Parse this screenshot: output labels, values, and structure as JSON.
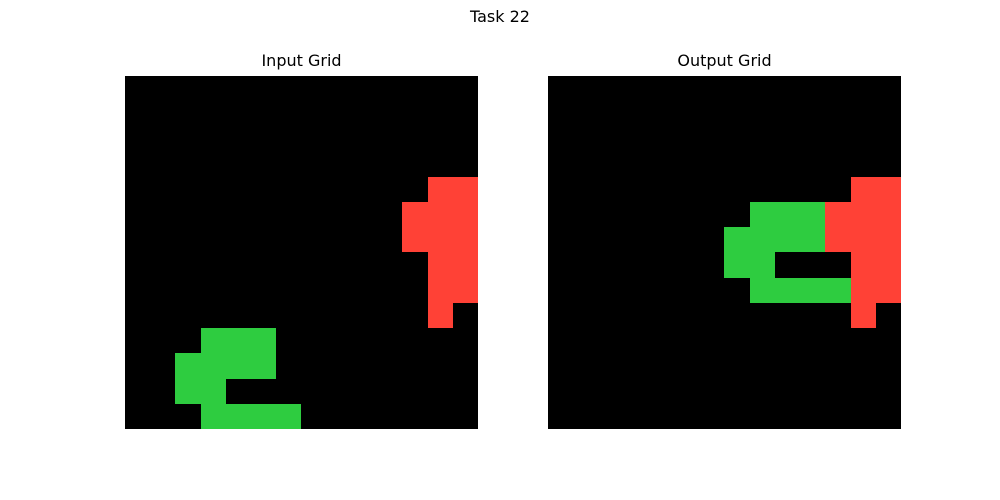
{
  "title": "Task 22",
  "palette": {
    "0": "#000000",
    "2": "#ff4136",
    "3": "#2ecc40"
  },
  "panels": [
    {
      "title": "Input Grid",
      "grid": [
        [
          0,
          0,
          0,
          0,
          0,
          0,
          0,
          0,
          0,
          0,
          0,
          0,
          0,
          0
        ],
        [
          0,
          0,
          0,
          0,
          0,
          0,
          0,
          0,
          0,
          0,
          0,
          0,
          0,
          0
        ],
        [
          0,
          0,
          0,
          0,
          0,
          0,
          0,
          0,
          0,
          0,
          0,
          0,
          0,
          0
        ],
        [
          0,
          0,
          0,
          0,
          0,
          0,
          0,
          0,
          0,
          0,
          0,
          0,
          0,
          0
        ],
        [
          0,
          0,
          0,
          0,
          0,
          0,
          0,
          0,
          0,
          0,
          0,
          0,
          2,
          2
        ],
        [
          0,
          0,
          0,
          0,
          0,
          0,
          0,
          0,
          0,
          0,
          0,
          2,
          2,
          2
        ],
        [
          0,
          0,
          0,
          0,
          0,
          0,
          0,
          0,
          0,
          0,
          0,
          2,
          2,
          2
        ],
        [
          0,
          0,
          0,
          0,
          0,
          0,
          0,
          0,
          0,
          0,
          0,
          0,
          2,
          2
        ],
        [
          0,
          0,
          0,
          0,
          0,
          0,
          0,
          0,
          0,
          0,
          0,
          0,
          2,
          2
        ],
        [
          0,
          0,
          0,
          0,
          0,
          0,
          0,
          0,
          0,
          0,
          0,
          0,
          2,
          0
        ],
        [
          0,
          0,
          0,
          3,
          3,
          3,
          0,
          0,
          0,
          0,
          0,
          0,
          0,
          0
        ],
        [
          0,
          0,
          3,
          3,
          3,
          3,
          0,
          0,
          0,
          0,
          0,
          0,
          0,
          0
        ],
        [
          0,
          0,
          3,
          3,
          0,
          0,
          0,
          0,
          0,
          0,
          0,
          0,
          0,
          0
        ],
        [
          0,
          0,
          0,
          3,
          3,
          3,
          3,
          0,
          0,
          0,
          0,
          0,
          0,
          0
        ]
      ]
    },
    {
      "title": "Output Grid",
      "grid": [
        [
          0,
          0,
          0,
          0,
          0,
          0,
          0,
          0,
          0,
          0,
          0,
          0,
          0,
          0
        ],
        [
          0,
          0,
          0,
          0,
          0,
          0,
          0,
          0,
          0,
          0,
          0,
          0,
          0,
          0
        ],
        [
          0,
          0,
          0,
          0,
          0,
          0,
          0,
          0,
          0,
          0,
          0,
          0,
          0,
          0
        ],
        [
          0,
          0,
          0,
          0,
          0,
          0,
          0,
          0,
          0,
          0,
          0,
          0,
          0,
          0
        ],
        [
          0,
          0,
          0,
          0,
          0,
          0,
          0,
          0,
          0,
          0,
          0,
          0,
          2,
          2
        ],
        [
          0,
          0,
          0,
          0,
          0,
          0,
          0,
          0,
          3,
          3,
          3,
          2,
          2,
          2
        ],
        [
          0,
          0,
          0,
          0,
          0,
          0,
          0,
          3,
          3,
          3,
          3,
          2,
          2,
          2
        ],
        [
          0,
          0,
          0,
          0,
          0,
          0,
          0,
          3,
          3,
          0,
          0,
          0,
          2,
          2
        ],
        [
          0,
          0,
          0,
          0,
          0,
          0,
          0,
          0,
          3,
          3,
          3,
          3,
          2,
          2
        ],
        [
          0,
          0,
          0,
          0,
          0,
          0,
          0,
          0,
          0,
          0,
          0,
          0,
          2,
          0
        ],
        [
          0,
          0,
          0,
          0,
          0,
          0,
          0,
          0,
          0,
          0,
          0,
          0,
          0,
          0
        ],
        [
          0,
          0,
          0,
          0,
          0,
          0,
          0,
          0,
          0,
          0,
          0,
          0,
          0,
          0
        ],
        [
          0,
          0,
          0,
          0,
          0,
          0,
          0,
          0,
          0,
          0,
          0,
          0,
          0,
          0
        ],
        [
          0,
          0,
          0,
          0,
          0,
          0,
          0,
          0,
          0,
          0,
          0,
          0,
          0,
          0
        ]
      ]
    }
  ]
}
